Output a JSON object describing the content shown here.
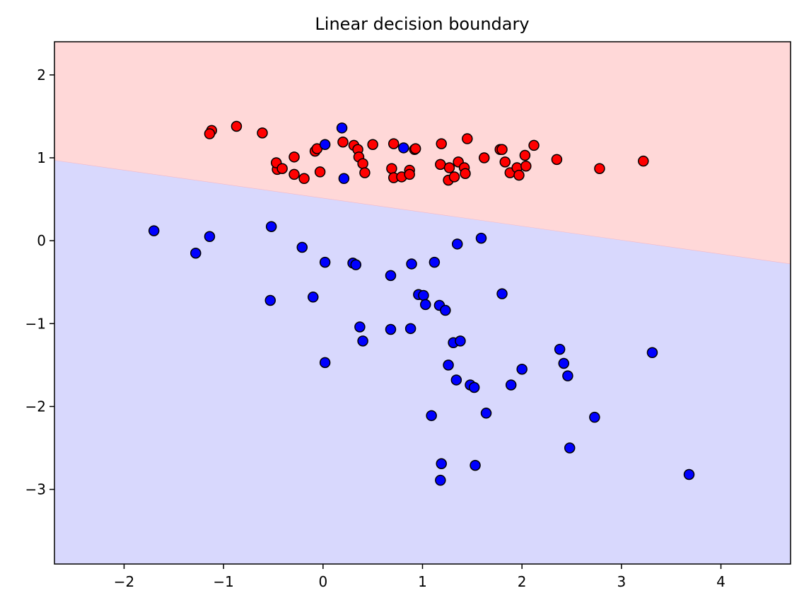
{
  "chart_data": {
    "type": "scatter",
    "title": "Linear decision boundary",
    "xlabel": "",
    "ylabel": "",
    "xlim": [
      -2.7,
      4.7
    ],
    "ylim": [
      -3.9,
      2.4
    ],
    "x_ticks": [
      -2,
      -1,
      0,
      1,
      2,
      3,
      4
    ],
    "y_ticks": [
      2,
      1,
      0,
      -1,
      -2,
      -3
    ],
    "x_tick_labels": [
      "−2",
      "−1",
      "0",
      "1",
      "2",
      "3",
      "4"
    ],
    "y_tick_labels": [
      "2",
      "1",
      "0",
      "−1",
      "−2",
      "−3"
    ],
    "grid": false,
    "legend": false,
    "decision_boundary": {
      "points": [
        [
          -2.7,
          0.97
        ],
        [
          4.7,
          -0.28
        ]
      ]
    },
    "regions": [
      {
        "side": "above",
        "color": "#ffd8d8"
      },
      {
        "side": "below",
        "color": "#d8d8fd"
      }
    ],
    "series": [
      {
        "color": "#ff0000",
        "points": [
          [
            -1.12,
            1.33
          ],
          [
            -1.14,
            1.29
          ],
          [
            -0.87,
            1.38
          ],
          [
            -0.61,
            1.3
          ],
          [
            -0.46,
            0.86
          ],
          [
            -0.47,
            0.94
          ],
          [
            -0.41,
            0.87
          ],
          [
            -0.29,
            1.01
          ],
          [
            -0.29,
            0.8
          ],
          [
            -0.19,
            0.75
          ],
          [
            -0.08,
            1.08
          ],
          [
            -0.06,
            1.11
          ],
          [
            -0.03,
            0.83
          ],
          [
            0.2,
            1.19
          ],
          [
            0.31,
            1.15
          ],
          [
            0.35,
            1.1
          ],
          [
            0.36,
            1.01
          ],
          [
            0.4,
            0.93
          ],
          [
            0.42,
            0.82
          ],
          [
            0.5,
            1.16
          ],
          [
            0.69,
            0.87
          ],
          [
            0.71,
            0.76
          ],
          [
            0.71,
            1.17
          ],
          [
            0.79,
            0.77
          ],
          [
            0.87,
            0.85
          ],
          [
            0.87,
            0.8
          ],
          [
            0.92,
            1.1
          ],
          [
            0.93,
            1.11
          ],
          [
            1.18,
            0.92
          ],
          [
            1.19,
            1.17
          ],
          [
            1.26,
            0.73
          ],
          [
            1.27,
            0.88
          ],
          [
            1.32,
            0.77
          ],
          [
            1.36,
            0.95
          ],
          [
            1.42,
            0.88
          ],
          [
            1.43,
            0.81
          ],
          [
            1.45,
            1.23
          ],
          [
            1.62,
            1.0
          ],
          [
            1.78,
            1.1
          ],
          [
            1.8,
            1.1
          ],
          [
            1.83,
            0.95
          ],
          [
            1.88,
            0.82
          ],
          [
            1.95,
            0.88
          ],
          [
            1.97,
            0.79
          ],
          [
            2.03,
            1.03
          ],
          [
            2.04,
            0.9
          ],
          [
            2.12,
            1.15
          ],
          [
            2.35,
            0.98
          ],
          [
            2.78,
            0.87
          ],
          [
            3.22,
            0.96
          ]
        ]
      },
      {
        "color": "#0000ff",
        "points": [
          [
            0.02,
            1.16
          ],
          [
            0.19,
            1.36
          ],
          [
            0.21,
            0.75
          ],
          [
            0.81,
            1.12
          ],
          [
            -1.7,
            0.12
          ],
          [
            -1.28,
            -0.15
          ],
          [
            -1.14,
            0.05
          ],
          [
            -0.52,
            0.17
          ],
          [
            -0.21,
            -0.08
          ],
          [
            0.02,
            -0.26
          ],
          [
            0.3,
            -0.27
          ],
          [
            0.33,
            -0.29
          ],
          [
            0.68,
            -0.42
          ],
          [
            0.89,
            -0.28
          ],
          [
            1.12,
            -0.26
          ],
          [
            1.35,
            -0.04
          ],
          [
            1.59,
            0.03
          ],
          [
            -0.53,
            -0.72
          ],
          [
            -0.1,
            -0.68
          ],
          [
            0.96,
            -0.65
          ],
          [
            1.01,
            -0.66
          ],
          [
            1.03,
            -0.77
          ],
          [
            1.17,
            -0.78
          ],
          [
            1.23,
            -0.84
          ],
          [
            1.8,
            -0.64
          ],
          [
            0.37,
            -1.04
          ],
          [
            0.68,
            -1.07
          ],
          [
            0.88,
            -1.06
          ],
          [
            0.4,
            -1.21
          ],
          [
            1.31,
            -1.23
          ],
          [
            1.38,
            -1.21
          ],
          [
            0.02,
            -1.47
          ],
          [
            1.26,
            -1.5
          ],
          [
            1.34,
            -1.68
          ],
          [
            1.48,
            -1.74
          ],
          [
            1.52,
            -1.77
          ],
          [
            1.89,
            -1.74
          ],
          [
            2.0,
            -1.55
          ],
          [
            2.38,
            -1.31
          ],
          [
            2.42,
            -1.48
          ],
          [
            2.46,
            -1.63
          ],
          [
            3.31,
            -1.35
          ],
          [
            1.09,
            -2.11
          ],
          [
            1.64,
            -2.08
          ],
          [
            2.73,
            -2.13
          ],
          [
            2.48,
            -2.5
          ],
          [
            1.19,
            -2.69
          ],
          [
            1.53,
            -2.71
          ],
          [
            1.18,
            -2.89
          ],
          [
            3.68,
            -2.82
          ]
        ]
      }
    ]
  }
}
